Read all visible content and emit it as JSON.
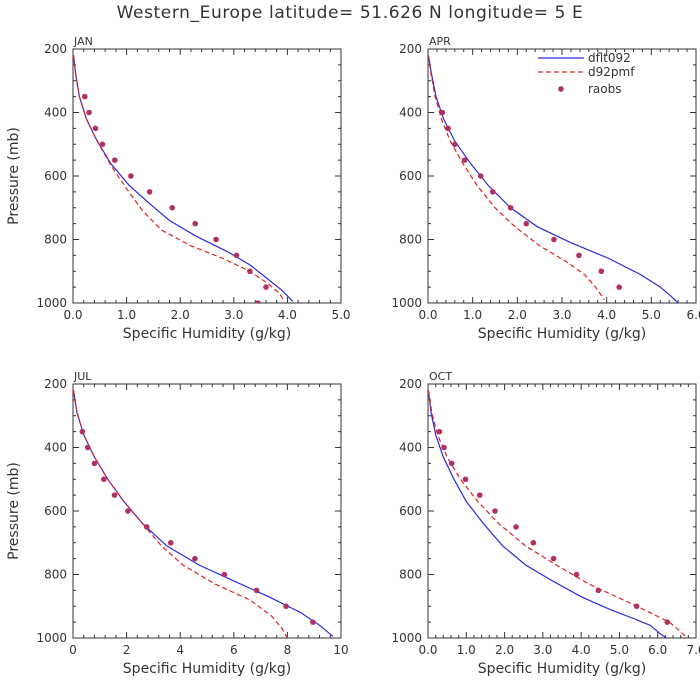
{
  "title": "Western_Europe  latitude= 51.626 N longitude= 5 E",
  "legend": {
    "placement": "top-right of APR panel",
    "entries": [
      {
        "label": "dflt092",
        "color": "#2a2ae0",
        "style": "solid"
      },
      {
        "label": "d92pmf",
        "color": "#e02020",
        "style": "dashed"
      },
      {
        "label": "raobs",
        "color": "#b03060",
        "style": "dots"
      }
    ]
  },
  "chart_data": [
    {
      "type": "line",
      "panel": "JAN",
      "xlabel": "Specific Humidity (g/kg)",
      "ylabel": "Pressure (mb)",
      "xlim": [
        0,
        5
      ],
      "ylim": [
        200,
        1000
      ],
      "y_inverted": true,
      "xticks": [
        "0.0",
        "1.0",
        "2.0",
        "3.0",
        "4.0",
        "5.0"
      ],
      "yticks": [
        "200",
        "400",
        "600",
        "800",
        "1000"
      ],
      "series": [
        {
          "name": "dflt092",
          "style": "solid",
          "color": "#2a2ae0",
          "points": [
            [
              0.01,
              220
            ],
            [
              0.05,
              280
            ],
            [
              0.12,
              350
            ],
            [
              0.25,
              420
            ],
            [
              0.42,
              480
            ],
            [
              0.7,
              560
            ],
            [
              1.05,
              630
            ],
            [
              1.45,
              690
            ],
            [
              1.8,
              740
            ],
            [
              2.3,
              790
            ],
            [
              2.9,
              840
            ],
            [
              3.3,
              880
            ],
            [
              3.6,
              920
            ],
            [
              3.9,
              960
            ],
            [
              4.1,
              995
            ]
          ]
        },
        {
          "name": "d92pmf",
          "style": "dashed",
          "color": "#e02020",
          "points": [
            [
              0.01,
              220
            ],
            [
              0.05,
              280
            ],
            [
              0.12,
              350
            ],
            [
              0.25,
              420
            ],
            [
              0.45,
              490
            ],
            [
              0.72,
              570
            ],
            [
              1.0,
              640
            ],
            [
              1.3,
              710
            ],
            [
              1.65,
              770
            ],
            [
              2.2,
              820
            ],
            [
              2.8,
              860
            ],
            [
              3.3,
              900
            ],
            [
              3.65,
              940
            ],
            [
              3.85,
              970
            ],
            [
              3.95,
              995
            ]
          ]
        },
        {
          "name": "raobs",
          "style": "dots",
          "color": "#b03060",
          "points": [
            [
              0.22,
              350
            ],
            [
              0.3,
              400
            ],
            [
              0.42,
              450
            ],
            [
              0.55,
              500
            ],
            [
              0.78,
              550
            ],
            [
              1.08,
              600
            ],
            [
              1.43,
              650
            ],
            [
              1.85,
              700
            ],
            [
              2.28,
              750
            ],
            [
              2.67,
              800
            ],
            [
              3.05,
              850
            ],
            [
              3.3,
              900
            ],
            [
              3.6,
              950
            ],
            [
              3.45,
              1000
            ]
          ]
        }
      ]
    },
    {
      "type": "line",
      "panel": "APR",
      "xlabel": "Specific Humidity (g/kg)",
      "ylabel": "",
      "xlim": [
        0,
        6
      ],
      "ylim": [
        200,
        1000
      ],
      "y_inverted": true,
      "xticks": [
        "0.0",
        "1.0",
        "2.0",
        "3.0",
        "4.0",
        "5.0",
        "6.0"
      ],
      "yticks": [
        "200",
        "400",
        "600",
        "800",
        "1000"
      ],
      "series": [
        {
          "name": "dflt092",
          "style": "solid",
          "color": "#2a2ae0",
          "points": [
            [
              0.01,
              220
            ],
            [
              0.08,
              280
            ],
            [
              0.18,
              350
            ],
            [
              0.35,
              420
            ],
            [
              0.6,
              490
            ],
            [
              0.95,
              560
            ],
            [
              1.35,
              630
            ],
            [
              1.85,
              700
            ],
            [
              2.45,
              760
            ],
            [
              3.2,
              810
            ],
            [
              4.05,
              860
            ],
            [
              4.75,
              910
            ],
            [
              5.2,
              950
            ],
            [
              5.45,
              980
            ],
            [
              5.6,
              1000
            ]
          ]
        },
        {
          "name": "d92pmf",
          "style": "dashed",
          "color": "#e02020",
          "points": [
            [
              0.01,
              220
            ],
            [
              0.07,
              280
            ],
            [
              0.16,
              350
            ],
            [
              0.3,
              420
            ],
            [
              0.5,
              490
            ],
            [
              0.78,
              560
            ],
            [
              1.1,
              630
            ],
            [
              1.5,
              700
            ],
            [
              1.95,
              760
            ],
            [
              2.5,
              820
            ],
            [
              3.1,
              870
            ],
            [
              3.5,
              910
            ],
            [
              3.75,
              950
            ],
            [
              3.95,
              990
            ]
          ]
        },
        {
          "name": "raobs",
          "style": "dots",
          "color": "#b03060",
          "points": [
            [
              0.32,
              400
            ],
            [
              0.45,
              450
            ],
            [
              0.6,
              500
            ],
            [
              0.82,
              550
            ],
            [
              1.18,
              600
            ],
            [
              1.45,
              650
            ],
            [
              1.85,
              700
            ],
            [
              2.2,
              750
            ],
            [
              2.82,
              800
            ],
            [
              3.38,
              850
            ],
            [
              3.88,
              900
            ],
            [
              4.28,
              950
            ]
          ]
        }
      ]
    },
    {
      "type": "line",
      "panel": "JUL",
      "xlabel": "Specific Humidity (g/kg)",
      "ylabel": "Pressure (mb)",
      "xlim": [
        0,
        10
      ],
      "ylim": [
        200,
        1000
      ],
      "y_inverted": true,
      "xticks": [
        "0",
        "2",
        "4",
        "6",
        "8",
        "10"
      ],
      "yticks": [
        "200",
        "400",
        "600",
        "800",
        "1000"
      ],
      "series": [
        {
          "name": "dflt092",
          "style": "solid",
          "color": "#2a2ae0",
          "points": [
            [
              0.02,
              220
            ],
            [
              0.15,
              290
            ],
            [
              0.4,
              360
            ],
            [
              0.8,
              430
            ],
            [
              1.3,
              500
            ],
            [
              1.9,
              570
            ],
            [
              2.6,
              640
            ],
            [
              3.5,
              710
            ],
            [
              4.7,
              770
            ],
            [
              6.0,
              820
            ],
            [
              7.3,
              870
            ],
            [
              8.5,
              920
            ],
            [
              9.2,
              960
            ],
            [
              9.7,
              995
            ]
          ]
        },
        {
          "name": "d92pmf",
          "style": "dashed",
          "color": "#e02020",
          "points": [
            [
              0.02,
              220
            ],
            [
              0.15,
              290
            ],
            [
              0.4,
              360
            ],
            [
              0.8,
              430
            ],
            [
              1.3,
              500
            ],
            [
              1.9,
              570
            ],
            [
              2.6,
              640
            ],
            [
              3.3,
              710
            ],
            [
              4.1,
              770
            ],
            [
              5.3,
              830
            ],
            [
              6.6,
              880
            ],
            [
              7.4,
              930
            ],
            [
              7.8,
              970
            ],
            [
              8.0,
              1000
            ]
          ]
        },
        {
          "name": "raobs",
          "style": "dots",
          "color": "#b03060",
          "points": [
            [
              0.35,
              350
            ],
            [
              0.55,
              400
            ],
            [
              0.8,
              450
            ],
            [
              1.15,
              500
            ],
            [
              1.55,
              550
            ],
            [
              2.05,
              600
            ],
            [
              2.75,
              650
            ],
            [
              3.65,
              700
            ],
            [
              4.55,
              750
            ],
            [
              5.65,
              800
            ],
            [
              6.85,
              850
            ],
            [
              7.95,
              900
            ],
            [
              8.95,
              950
            ]
          ]
        }
      ]
    },
    {
      "type": "line",
      "panel": "OCT",
      "xlabel": "Specific Humidity (g/kg)",
      "ylabel": "",
      "xlim": [
        0,
        7
      ],
      "ylim": [
        200,
        1000
      ],
      "y_inverted": true,
      "xticks": [
        "0.0",
        "1.0",
        "2.0",
        "3.0",
        "4.0",
        "5.0",
        "6.0",
        "7.0"
      ],
      "yticks": [
        "200",
        "400",
        "600",
        "800",
        "1000"
      ],
      "series": [
        {
          "name": "dflt092",
          "style": "solid",
          "color": "#2a2ae0",
          "points": [
            [
              0.01,
              220
            ],
            [
              0.08,
              290
            ],
            [
              0.2,
              360
            ],
            [
              0.4,
              430
            ],
            [
              0.68,
              500
            ],
            [
              1.0,
              570
            ],
            [
              1.45,
              640
            ],
            [
              1.95,
              710
            ],
            [
              2.55,
              770
            ],
            [
              3.25,
              820
            ],
            [
              4.0,
              870
            ],
            [
              4.75,
              910
            ],
            [
              5.4,
              940
            ],
            [
              5.8,
              960
            ],
            [
              6.1,
              990
            ],
            [
              6.3,
              1005
            ]
          ]
        },
        {
          "name": "d92pmf",
          "style": "dashed",
          "color": "#e02020",
          "points": [
            [
              0.01,
              220
            ],
            [
              0.1,
              290
            ],
            [
              0.25,
              360
            ],
            [
              0.5,
              430
            ],
            [
              0.85,
              500
            ],
            [
              1.3,
              570
            ],
            [
              1.85,
              640
            ],
            [
              2.55,
              710
            ],
            [
              3.35,
              770
            ],
            [
              4.2,
              830
            ],
            [
              5.1,
              880
            ],
            [
              5.8,
              920
            ],
            [
              6.3,
              950
            ],
            [
              6.6,
              980
            ],
            [
              6.8,
              1005
            ]
          ]
        },
        {
          "name": "raobs",
          "style": "dots",
          "color": "#b03060",
          "points": [
            [
              0.3,
              350
            ],
            [
              0.42,
              400
            ],
            [
              0.62,
              450
            ],
            [
              0.98,
              500
            ],
            [
              1.35,
              550
            ],
            [
              1.75,
              600
            ],
            [
              2.3,
              650
            ],
            [
              2.75,
              700
            ],
            [
              3.28,
              750
            ],
            [
              3.88,
              800
            ],
            [
              4.45,
              850
            ],
            [
              5.45,
              900
            ],
            [
              6.25,
              950
            ]
          ]
        }
      ]
    }
  ]
}
